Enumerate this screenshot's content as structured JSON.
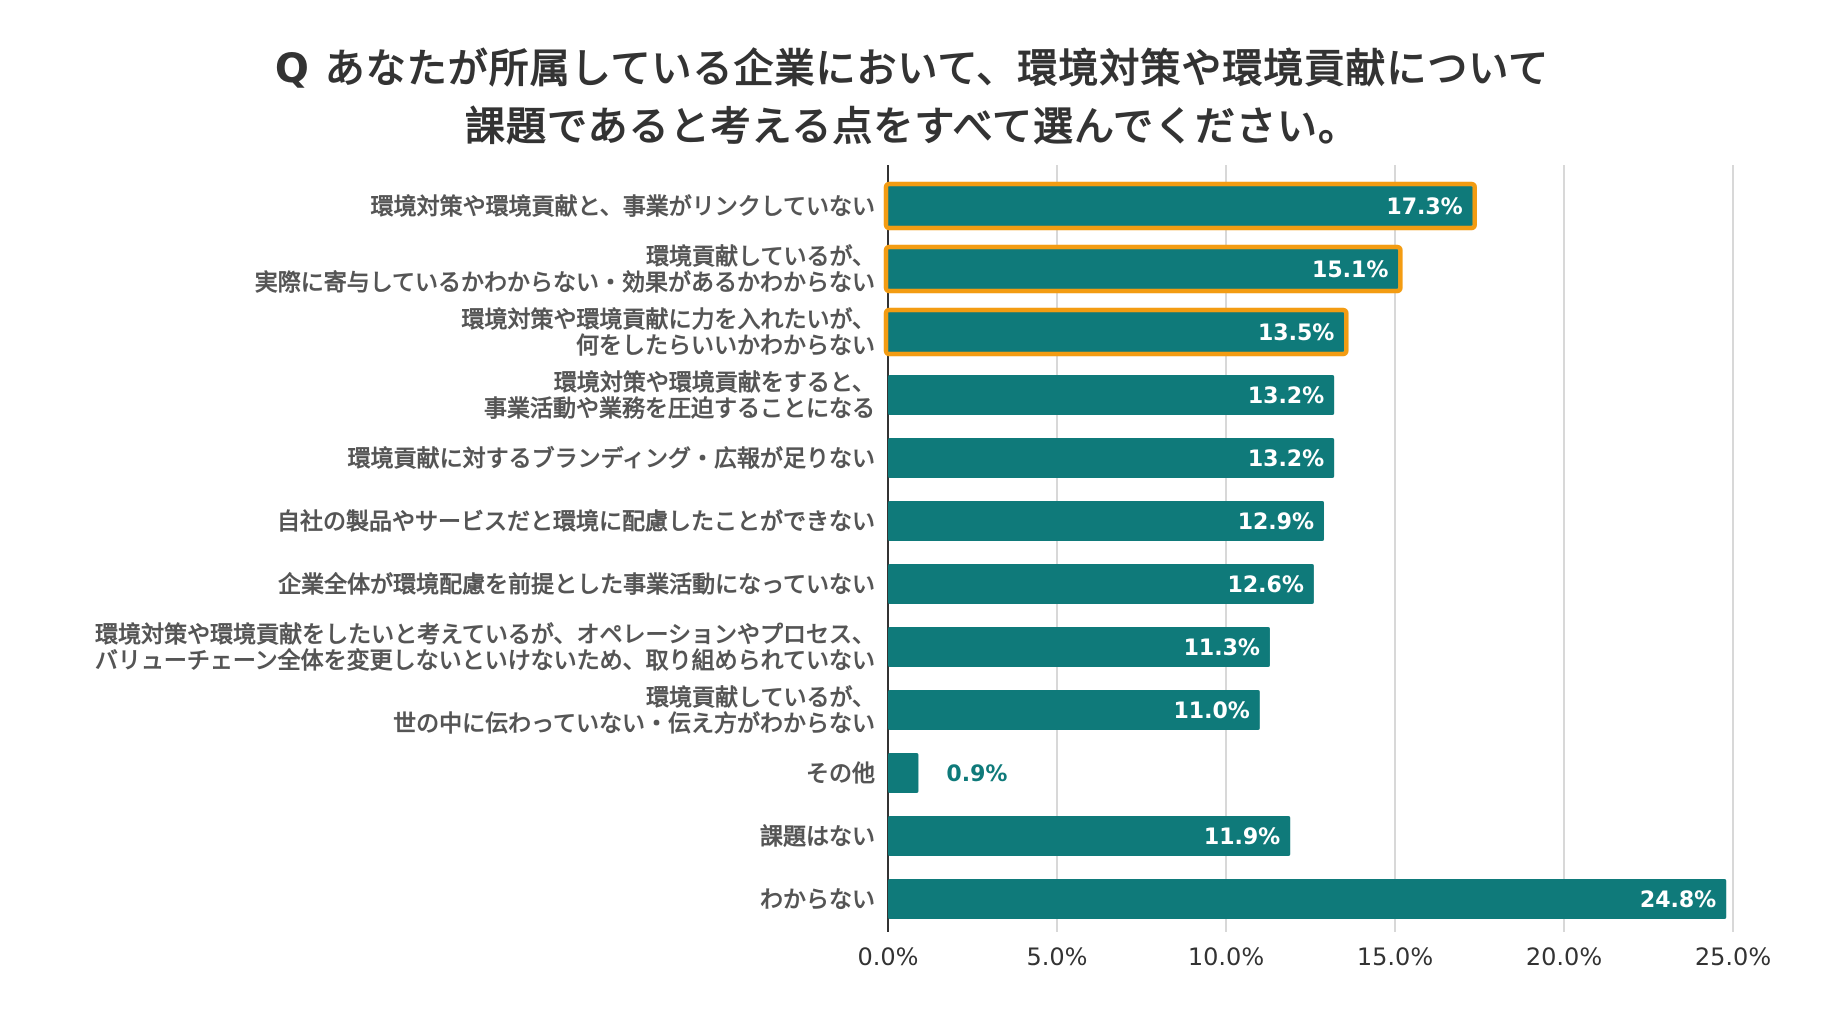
{
  "chart_data": {
    "type": "bar",
    "orientation": "horizontal",
    "title": [
      "Q あなたが所属している企業において、環境対策や環境貢献について",
      "課題であると考える点をすべて選んでください。"
    ],
    "categories": [
      [
        "環境対策や環境貢献と、事業がリンクしていない"
      ],
      [
        "環境貢献しているが、",
        "実際に寄与しているかわからない・効果があるかわからない"
      ],
      [
        "環境対策や環境貢献に力を入れたいが、",
        "何をしたらいいかわからない"
      ],
      [
        "環境対策や環境貢献をすると、",
        "事業活動や業務を圧迫することになる"
      ],
      [
        "環境貢献に対するブランディング・広報が足りない"
      ],
      [
        "自社の製品やサービスだと環境に配慮したことができない"
      ],
      [
        "企業全体が環境配慮を前提とした事業活動になっていない"
      ],
      [
        "環境対策や環境貢献をしたいと考えているが、オペレーションやプロセス、",
        "バリューチェーン全体を変更しないといけないため、取り組められていない"
      ],
      [
        "環境貢献しているが、",
        "世の中に伝わっていない・伝え方がわからない"
      ],
      [
        "その他"
      ],
      [
        "課題はない"
      ],
      [
        "わからない"
      ]
    ],
    "values": [
      17.3,
      15.1,
      13.5,
      13.2,
      13.2,
      12.9,
      12.6,
      11.3,
      11.0,
      0.9,
      11.9,
      24.8
    ],
    "value_labels": [
      "17.3%",
      "15.1%",
      "13.5%",
      "13.2%",
      "13.2%",
      "12.9%",
      "12.6%",
      "11.3%",
      "11.0%",
      "0.9%",
      "11.9%",
      "24.8%"
    ],
    "highlighted": [
      true,
      true,
      true,
      false,
      false,
      false,
      false,
      false,
      false,
      false,
      false,
      false
    ],
    "xlim": [
      0,
      25
    ],
    "xticks": [
      0,
      5,
      10,
      15,
      20,
      25
    ],
    "xtick_labels": [
      "0.0%",
      "5.0%",
      "10.0%",
      "15.0%",
      "20.0%",
      "25.0%"
    ],
    "xlabel": "",
    "ylabel": "",
    "grid": true,
    "colors": {
      "bar": "#0f7a7a",
      "highlight_outline": "#f39c12",
      "grid": "#cccccc",
      "axis": "#333333",
      "label_inside": "#ffffff",
      "label_outside": "#0f7a7a",
      "category_text": "#555555",
      "title_text": "#333333"
    }
  }
}
